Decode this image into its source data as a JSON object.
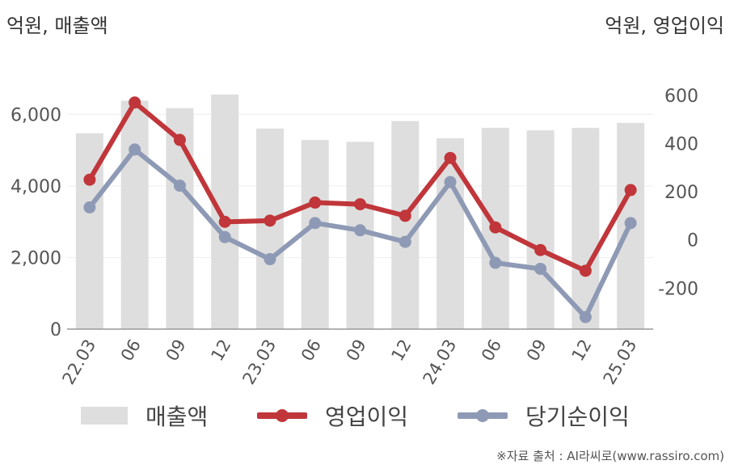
{
  "units": {
    "left": "억원, 매출액",
    "right": "억원, 영업이익"
  },
  "source": "※자료 출처 : AI라씨로(www.rassiro.com)",
  "colors": {
    "bars": "#dedede",
    "operating_profit": "#c0363a",
    "net_income": "#8e9ab5",
    "axis": "#999999",
    "grid": "#eeeeee"
  },
  "chart_data": {
    "type": "bar",
    "categories": [
      "22.03",
      "06",
      "09",
      "12",
      "23.03",
      "06",
      "09",
      "12",
      "24.03",
      "06",
      "09",
      "12",
      "25.03"
    ],
    "left_axis": {
      "ylim": [
        0,
        7000
      ],
      "ticks": [
        0,
        2000,
        4000,
        6000
      ],
      "tick_labels": [
        "0",
        "2,000",
        "4,000",
        "6,000"
      ]
    },
    "right_axis": {
      "ylim": [
        -370,
        670
      ],
      "ticks": [
        -200,
        0,
        200,
        400,
        600
      ],
      "tick_labels": [
        "-200",
        "0",
        "200",
        "400",
        "600"
      ]
    },
    "series": [
      {
        "name": "매출액",
        "type": "bar",
        "axis": "left",
        "values": [
          5470,
          6380,
          6170,
          6550,
          5600,
          5280,
          5230,
          5810,
          5330,
          5620,
          5550,
          5620,
          5760
        ]
      },
      {
        "name": "영업이익",
        "type": "line",
        "axis": "right",
        "values": [
          250,
          570,
          415,
          75,
          80,
          155,
          148,
          100,
          340,
          52,
          -42,
          -128,
          207
        ]
      },
      {
        "name": "당기순이익",
        "type": "line",
        "axis": "right",
        "values": [
          135,
          375,
          225,
          12,
          -80,
          70,
          40,
          -8,
          240,
          -95,
          -120,
          -320,
          70
        ]
      }
    ],
    "legend": [
      "매출액",
      "영업이익",
      "당기순이익"
    ],
    "legend_position": "bottom"
  }
}
